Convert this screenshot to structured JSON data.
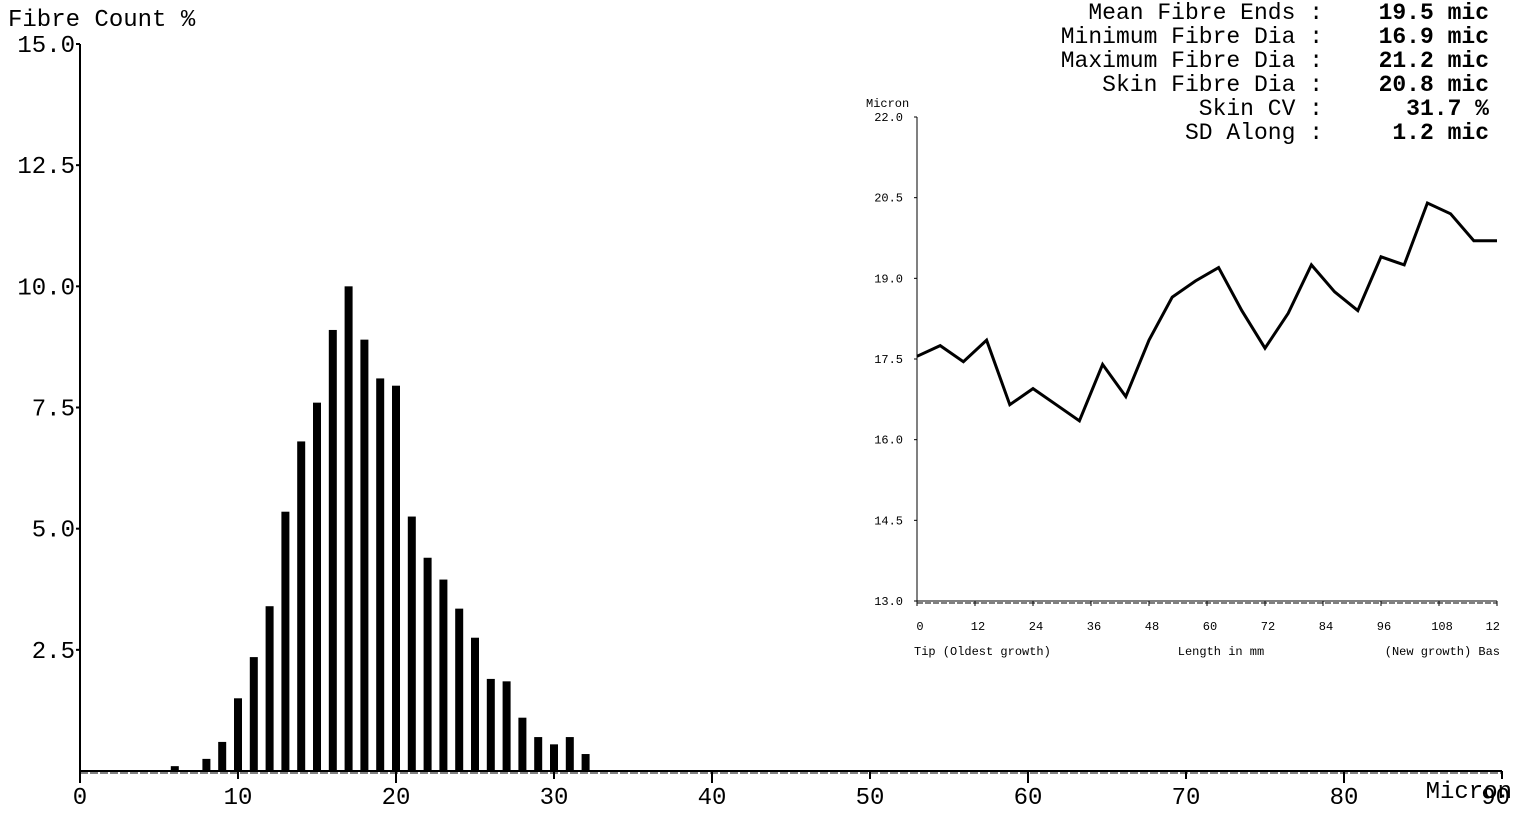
{
  "stats": [
    {
      "label": "Mean Fibre Ends :",
      "value": "19.5 mic"
    },
    {
      "label": "Minimum Fibre Dia :",
      "value": "16.9 mic"
    },
    {
      "label": "Maximum Fibre Dia :",
      "value": "21.2 mic"
    },
    {
      "label": "Skin Fibre Dia :",
      "value": "20.8 mic"
    },
    {
      "label": "Skin CV :",
      "value": "31.7 %"
    },
    {
      "label": "SD Along :",
      "value": "1.2 mic"
    }
  ],
  "chart_data": [
    {
      "type": "bar",
      "ylabel": "Fibre Count %",
      "xlabel": "Micron",
      "xlim": [
        0,
        90
      ],
      "ylim": [
        0,
        15
      ],
      "x_ticks": [
        "0",
        "10",
        "20",
        "30",
        "40",
        "50",
        "60",
        "70",
        "80",
        "90"
      ],
      "y_ticks": [
        "2.5",
        "5.0",
        "7.5",
        "10.0",
        "12.5",
        "15.0"
      ],
      "x": [
        6,
        8,
        9,
        10,
        11,
        12,
        13,
        14,
        15,
        16,
        17,
        18,
        19,
        20,
        21,
        22,
        23,
        24,
        25,
        26,
        27,
        28,
        29,
        30,
        31,
        32
      ],
      "values": [
        0.1,
        0.25,
        0.6,
        1.5,
        2.35,
        3.4,
        5.35,
        6.8,
        7.6,
        9.1,
        10.0,
        8.9,
        8.1,
        7.95,
        5.25,
        4.4,
        3.95,
        3.35,
        2.75,
        1.9,
        1.85,
        1.1,
        0.7,
        0.55,
        0.7,
        0.35
      ],
      "grid": false
    },
    {
      "type": "line",
      "ylabel": "Micron",
      "xlabel": "Length in mm",
      "x_left_note": "Tip (Oldest growth)",
      "x_right_note": "(New growth) Bas",
      "xlim": [
        0,
        120
      ],
      "ylim": [
        13.0,
        22.0
      ],
      "x_ticks": [
        "0",
        "12",
        "24",
        "36",
        "48",
        "60",
        "72",
        "84",
        "96",
        "108",
        "12"
      ],
      "y_ticks": [
        "13.0",
        "14.5",
        "16.0",
        "17.5",
        "19.0",
        "20.5",
        "22.0"
      ],
      "x": [
        0,
        4.8,
        9.6,
        14.4,
        19.2,
        24,
        28.8,
        33.6,
        38.4,
        43.2,
        48,
        52.8,
        57.6,
        62.4,
        67.2,
        72,
        76.8,
        81.6,
        86.4,
        91.2,
        96,
        100.8,
        105.6,
        110.4,
        115.2,
        120
      ],
      "values": [
        17.55,
        17.75,
        17.45,
        17.85,
        16.65,
        16.95,
        16.65,
        16.35,
        17.4,
        16.8,
        17.85,
        18.65,
        18.95,
        19.2,
        18.4,
        17.7,
        18.35,
        19.25,
        18.75,
        18.4,
        19.4,
        19.25,
        20.4,
        20.2,
        19.7,
        19.7
      ],
      "grid": false
    }
  ]
}
